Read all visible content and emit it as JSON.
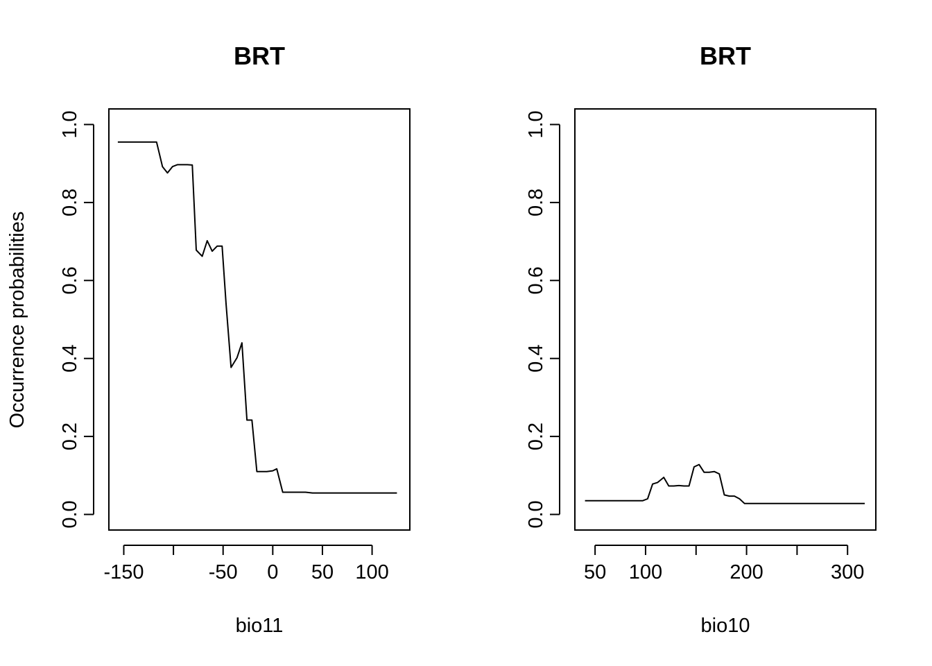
{
  "chart_data": [
    {
      "type": "line",
      "title": "BRT",
      "xlabel": "bio11",
      "ylabel": "Occurrence probabilities",
      "xlim": [
        -165,
        138
      ],
      "ylim": [
        -0.04,
        1.04
      ],
      "xticks": [
        -150,
        -100,
        -50,
        0,
        50,
        100
      ],
      "xtick_labels": [
        "-150",
        "",
        "-50",
        "0",
        "50",
        "100"
      ],
      "yticks": [
        0.0,
        0.2,
        0.4,
        0.6,
        0.8,
        1.0
      ],
      "ytick_labels": [
        "0.0",
        "0.2",
        "0.4",
        "0.6",
        "0.8",
        "1.0"
      ],
      "x": [
        -156,
        -143,
        -130,
        -117,
        -111,
        -106,
        -101,
        -96,
        -91,
        -86,
        -81,
        -77,
        -71,
        -66,
        -61,
        -56,
        -51,
        -47,
        -42,
        -36,
        -31,
        -26,
        -21,
        -16,
        -11,
        -6,
        0,
        4,
        10,
        15,
        20,
        25,
        33,
        40,
        50,
        60,
        80,
        100,
        125
      ],
      "y": [
        0.955,
        0.955,
        0.955,
        0.955,
        0.892,
        0.876,
        0.892,
        0.897,
        0.897,
        0.897,
        0.896,
        0.678,
        0.662,
        0.702,
        0.675,
        0.688,
        0.688,
        0.54,
        0.377,
        0.402,
        0.44,
        0.242,
        0.242,
        0.11,
        0.11,
        0.11,
        0.112,
        0.117,
        0.057,
        0.057,
        0.057,
        0.057,
        0.057,
        0.055,
        0.055,
        0.055,
        0.055,
        0.055,
        0.055
      ]
    },
    {
      "type": "line",
      "title": "BRT",
      "xlabel": "bio10",
      "ylabel": "",
      "xlim": [
        30,
        328
      ],
      "ylim": [
        -0.04,
        1.04
      ],
      "xticks": [
        50,
        100,
        150,
        200,
        250,
        300
      ],
      "xtick_labels": [
        "50",
        "100",
        "",
        "200",
        "",
        "300"
      ],
      "yticks": [
        0.0,
        0.2,
        0.4,
        0.6,
        0.8,
        1.0
      ],
      "ytick_labels": [
        "0.0",
        "0.2",
        "0.4",
        "0.6",
        "0.8",
        "1.0"
      ],
      "x": [
        40,
        60,
        80,
        97,
        102,
        107,
        112,
        118,
        123,
        128,
        133,
        138,
        143,
        148,
        153,
        158,
        163,
        168,
        173,
        178,
        183,
        188,
        193,
        198,
        203,
        208,
        220,
        260,
        317
      ],
      "y": [
        0.035,
        0.035,
        0.035,
        0.035,
        0.04,
        0.078,
        0.082,
        0.095,
        0.073,
        0.073,
        0.074,
        0.073,
        0.073,
        0.122,
        0.128,
        0.108,
        0.108,
        0.11,
        0.104,
        0.05,
        0.047,
        0.047,
        0.04,
        0.028,
        0.028,
        0.028,
        0.028,
        0.028,
        0.028
      ]
    }
  ]
}
